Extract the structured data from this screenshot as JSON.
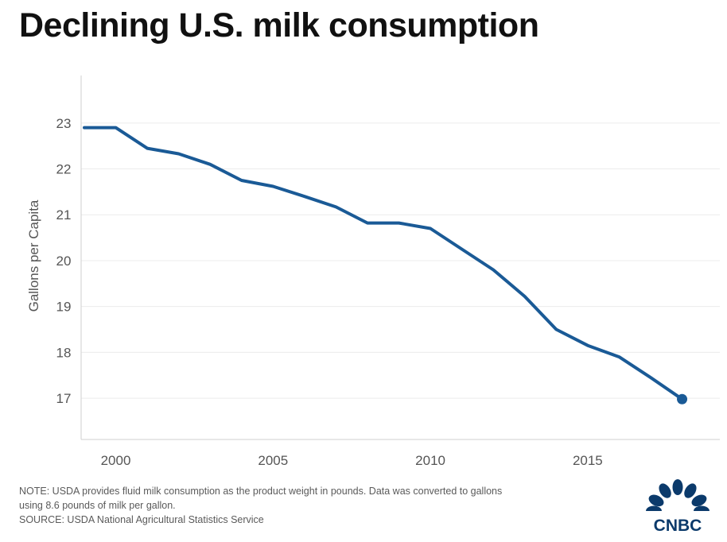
{
  "title": "Declining U.S. milk consumption",
  "note": {
    "line1": "NOTE: USDA provides fluid milk consumption as the product weight in pounds. Data was converted to gallons",
    "line2": "using 8.6 pounds of milk per gallon.",
    "source": "SOURCE: USDA National Agricultural Statistics Service"
  },
  "logo": {
    "text": "CNBC",
    "color": "#0b3a6b",
    "icon": "cnbc-peacock-icon"
  },
  "colors": {
    "line": "#1a5a96",
    "grid": "#ececec",
    "axis": "#cfcfcf",
    "tick_text": "#555555"
  },
  "chart_data": {
    "type": "line",
    "title": "Declining U.S. milk consumption",
    "xlabel": "",
    "ylabel": "Gallons per Capita",
    "x_ticks": [
      2000,
      2005,
      2010,
      2015
    ],
    "y_ticks": [
      17,
      18,
      19,
      20,
      21,
      22,
      23
    ],
    "xlim": [
      1998.9,
      2019.2
    ],
    "ylim": [
      16.1,
      23.95
    ],
    "grid": true,
    "series": [
      {
        "name": "Gallons per Capita",
        "x": [
          1999,
          2000,
          2001,
          2002,
          2003,
          2004,
          2005,
          2006,
          2007,
          2008,
          2009,
          2010,
          2011,
          2012,
          2013,
          2014,
          2015,
          2016,
          2017,
          2018
        ],
        "values": [
          22.9,
          22.9,
          22.45,
          22.33,
          22.1,
          21.75,
          21.62,
          21.4,
          21.17,
          20.82,
          20.82,
          20.7,
          20.25,
          19.8,
          19.22,
          18.5,
          18.15,
          17.9,
          17.45,
          16.98
        ],
        "end_marker": true
      }
    ]
  }
}
